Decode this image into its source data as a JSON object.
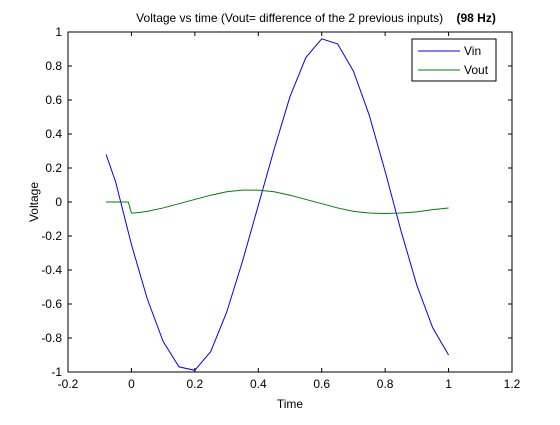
{
  "chart_data": {
    "type": "line",
    "title": "Voltage vs time (Vout= difference of the 2 previous inputs)",
    "title_bold": "(98 Hz)",
    "xlabel": "Time",
    "ylabel": "Voltage",
    "xlim": [
      -0.2,
      1.2
    ],
    "ylim": [
      -1,
      1
    ],
    "xticks": [
      "-0.2",
      "0",
      "0.2",
      "0.4",
      "0.6",
      "0.8",
      "1",
      "1.2"
    ],
    "yticks": [
      "-1",
      "-0.8",
      "-0.6",
      "-0.4",
      "-0.2",
      "0",
      "0.2",
      "0.4",
      "0.6",
      "0.8",
      "1"
    ],
    "grid": false,
    "legend_position": "top-right",
    "series": [
      {
        "name": "Vin",
        "color": "#0000ff",
        "x": [
          -0.08,
          -0.05,
          0,
          0.05,
          0.1,
          0.15,
          0.2,
          0.25,
          0.3,
          0.35,
          0.4,
          0.45,
          0.5,
          0.55,
          0.6,
          0.65,
          0.7,
          0.75,
          0.8,
          0.85,
          0.9,
          0.95,
          1.0
        ],
        "values": [
          0.28,
          0.12,
          -0.25,
          -0.57,
          -0.82,
          -0.97,
          -0.99,
          -0.88,
          -0.65,
          -0.35,
          -0.02,
          0.31,
          0.62,
          0.85,
          0.96,
          0.93,
          0.77,
          0.51,
          0.18,
          -0.17,
          -0.49,
          -0.74,
          -0.9
        ]
      },
      {
        "name": "Vout",
        "color": "#008000",
        "x": [
          -0.08,
          -0.04,
          -0.01,
          0.0,
          0.01,
          0.05,
          0.1,
          0.15,
          0.2,
          0.25,
          0.3,
          0.35,
          0.4,
          0.45,
          0.5,
          0.55,
          0.6,
          0.65,
          0.7,
          0.75,
          0.8,
          0.85,
          0.9,
          0.95,
          1.0
        ],
        "values": [
          0.0,
          0.0,
          0.0,
          -0.065,
          -0.065,
          -0.055,
          -0.035,
          -0.01,
          0.015,
          0.04,
          0.06,
          0.07,
          0.07,
          0.06,
          0.04,
          0.015,
          -0.01,
          -0.035,
          -0.055,
          -0.065,
          -0.068,
          -0.065,
          -0.058,
          -0.045,
          -0.035
        ]
      }
    ]
  }
}
